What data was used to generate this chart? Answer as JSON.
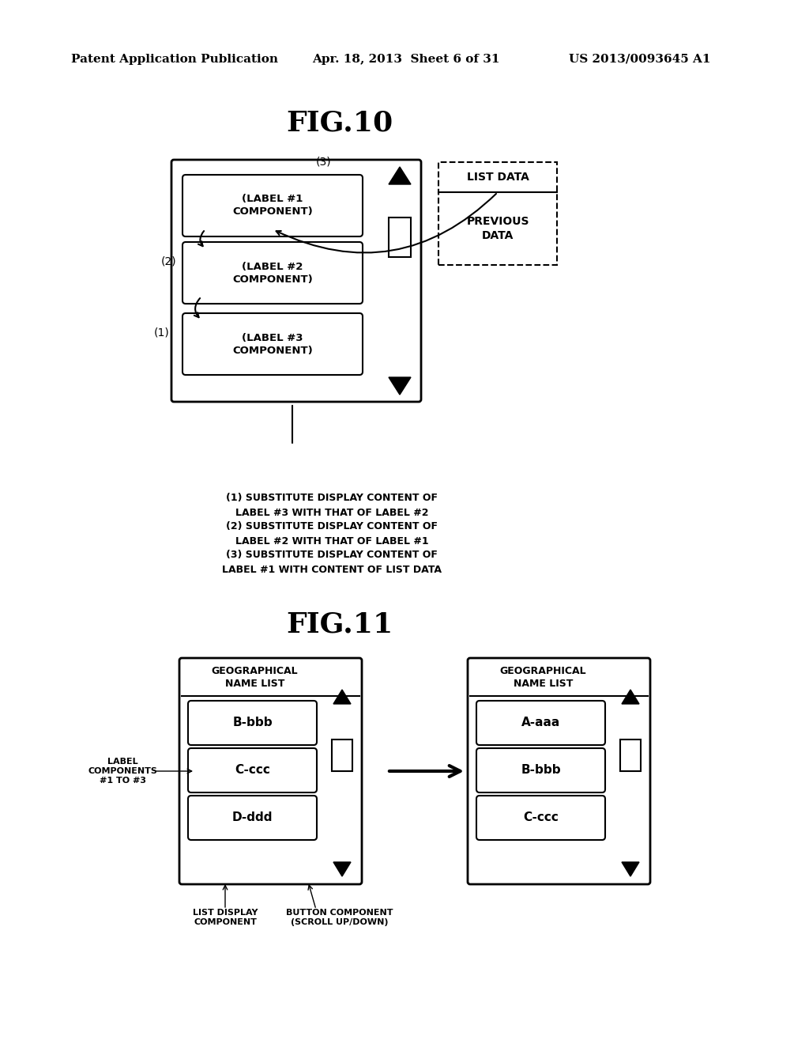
{
  "bg_color": "#ffffff",
  "header_text": "Patent Application Publication",
  "header_date": "Apr. 18, 2013  Sheet 6 of 31",
  "header_patent": "US 2013/0093645 A1",
  "fig10_title": "FIG.10",
  "fig11_title": "FIG.11",
  "annotation_text": "(1) SUBSTITUTE DISPLAY CONTENT OF\nLABEL #3 WITH THAT OF LABEL #2\n(2) SUBSTITUTE DISPLAY CONTENT OF\nLABEL #2 WITH THAT OF LABEL #1\n(3) SUBSTITUTE DISPLAY CONTENT OF\nLABEL #1 WITH CONTENT OF LIST DATA",
  "list_data_label": "LIST DATA",
  "previous_data_label": "PREVIOUS\nDATA",
  "label1": "(LABEL #1\nCOMPONENT)",
  "label2": "(LABEL #2\nCOMPONENT)",
  "label3": "(LABEL #3\nCOMPONENT)",
  "fig11_title_left": "GEOGRAPHICAL\nNAME LIST",
  "fig11_title_right": "GEOGRAPHICAL\nNAME LIST",
  "fig11_left_items": [
    "B-bbb",
    "C-ccc",
    "D-ddd"
  ],
  "fig11_right_items": [
    "A-aaa",
    "B-bbb",
    "C-ccc"
  ],
  "label_components_text": "LABEL\nCOMPONENTS\n#1 TO #3",
  "list_display_label": "LIST DISPLAY\nCOMPONENT",
  "button_component_label": "BUTTON COMPONENT\n(SCROLL UP/DOWN)"
}
